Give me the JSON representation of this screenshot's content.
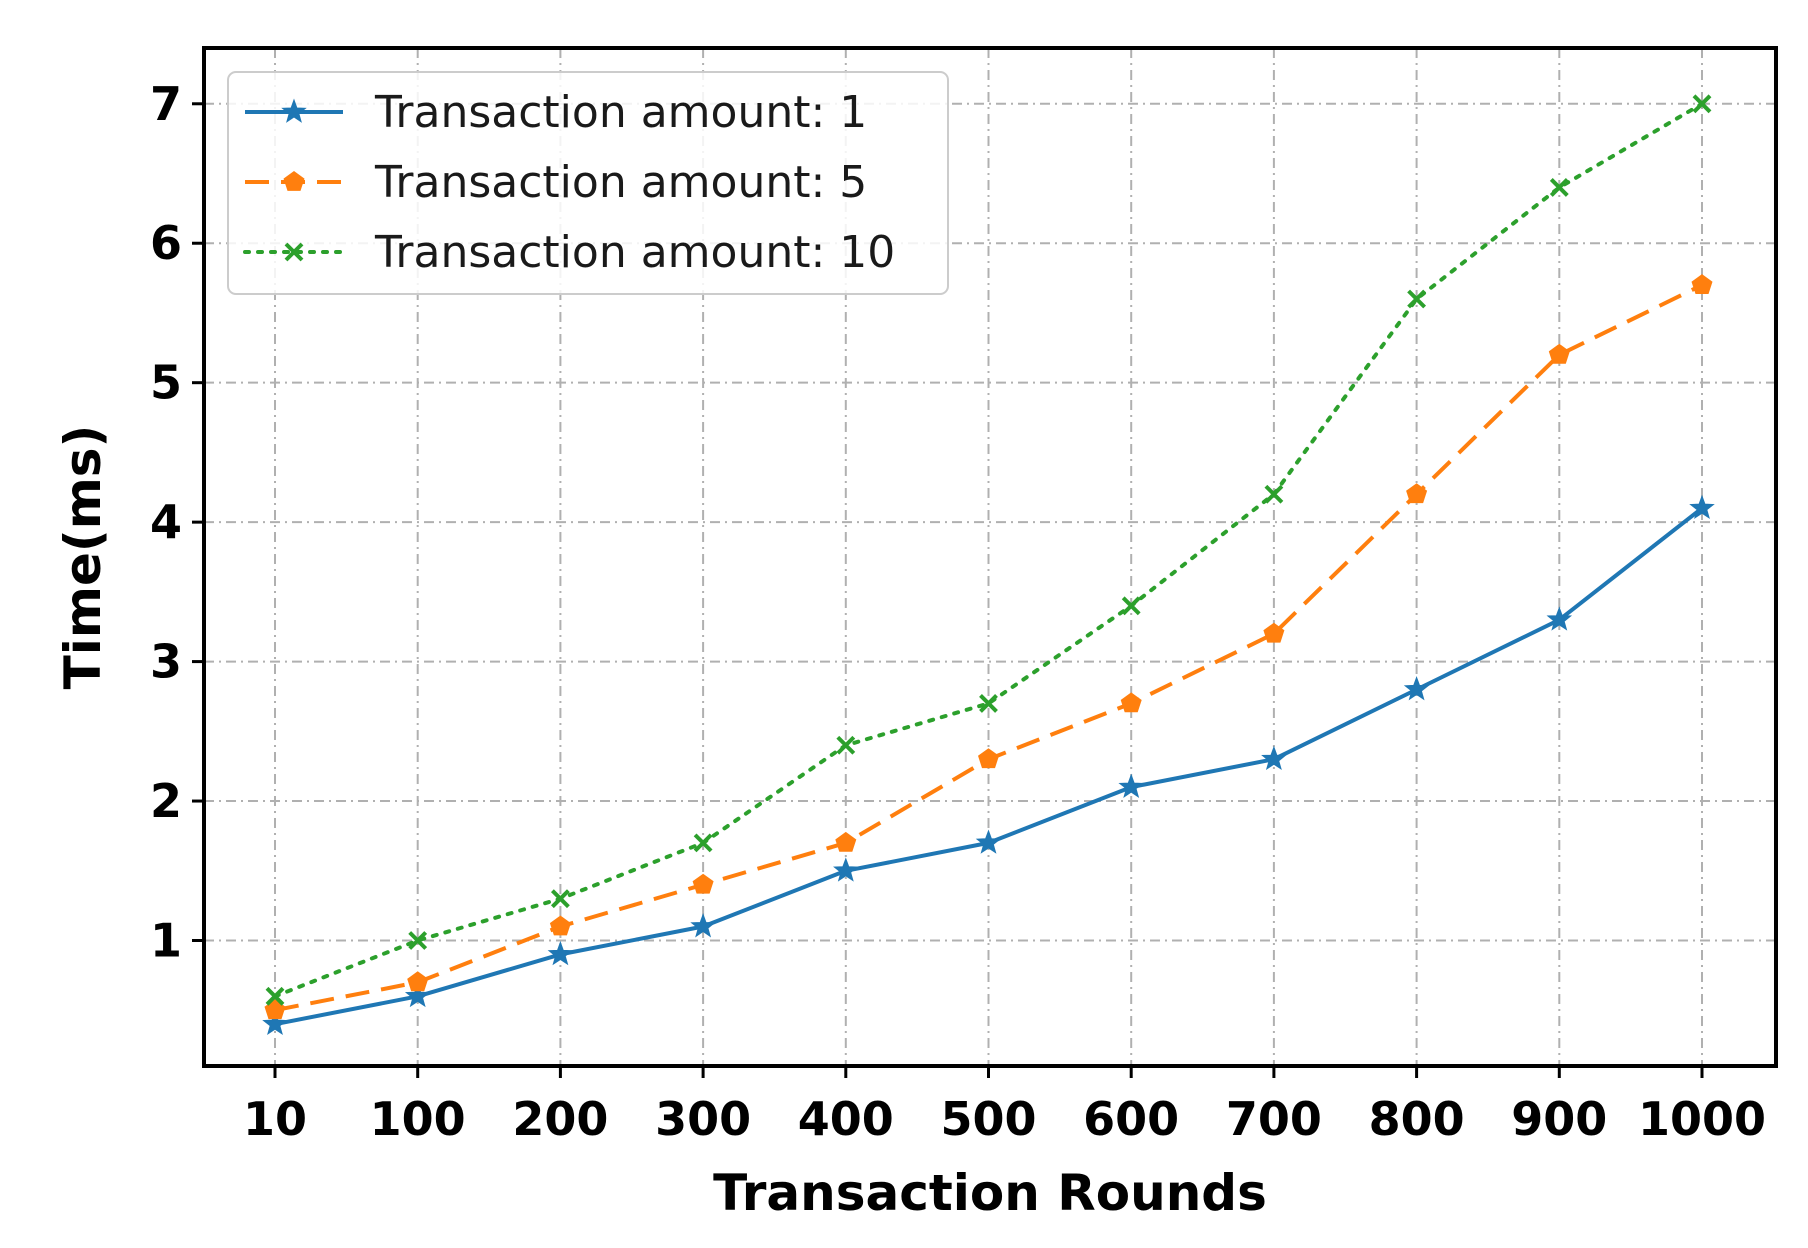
{
  "chart_data": {
    "type": "line",
    "title": "",
    "xlabel": "Transaction Rounds",
    "ylabel": "Time(ms)",
    "categories": [
      "10",
      "100",
      "200",
      "300",
      "400",
      "500",
      "600",
      "700",
      "800",
      "900",
      "1000"
    ],
    "y_ticks": [
      "1",
      "2",
      "3",
      "4",
      "5",
      "6",
      "7"
    ],
    "ylim": [
      0.1,
      7.4
    ],
    "grid": true,
    "legend_position": "top-left",
    "series": [
      {
        "name": "Transaction amount: 1",
        "color": "#1f77b4",
        "line_style": "solid",
        "marker": "star",
        "values": [
          0.4,
          0.6,
          0.9,
          1.1,
          1.5,
          1.7,
          2.1,
          2.3,
          2.8,
          3.3,
          4.1
        ]
      },
      {
        "name": "Transaction amount: 5",
        "color": "#ff7f0e",
        "line_style": "dashed",
        "marker": "pentagon",
        "values": [
          0.5,
          0.7,
          1.1,
          1.4,
          1.7,
          2.3,
          2.7,
          3.2,
          4.2,
          5.2,
          5.7
        ]
      },
      {
        "name": "Transaction amount: 10",
        "color": "#2ca02c",
        "line_style": "dotted",
        "marker": "x",
        "values": [
          0.6,
          1.0,
          1.3,
          1.7,
          2.4,
          2.7,
          3.4,
          4.2,
          5.6,
          6.4,
          7.0
        ]
      }
    ]
  }
}
